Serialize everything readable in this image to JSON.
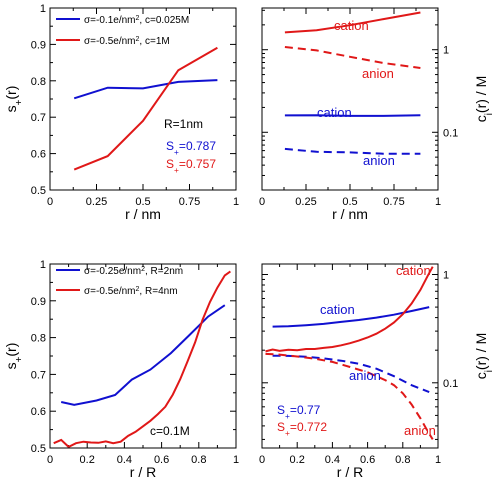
{
  "colors": {
    "blue": "#1010d0",
    "red": "#e01818",
    "axis": "#000000"
  },
  "chart_data": [
    {
      "id": "tl",
      "type": "line",
      "xlabel": "r / nm",
      "ylabel": "s+(r)",
      "xlim": [
        0,
        1
      ],
      "ylim": [
        0.5,
        1
      ],
      "xticks": [
        {
          "v": 0,
          "t": "0"
        },
        {
          "v": 0.25,
          "t": "0.25"
        },
        {
          "v": 0.5,
          "t": "0.5"
        },
        {
          "v": 0.75,
          "t": "0.75"
        },
        {
          "v": 1,
          "t": "1"
        }
      ],
      "yticks": [
        {
          "v": 0.5,
          "t": "0.5"
        },
        {
          "v": 0.6,
          "t": "0.6"
        },
        {
          "v": 0.7,
          "t": "0.7"
        },
        {
          "v": 0.8,
          "t": "0.8"
        },
        {
          "v": 0.9,
          "t": "0.9"
        },
        {
          "v": 1,
          "t": "1"
        }
      ],
      "series": [
        {
          "name": "σ=-0.1e/nm², c=0.025M",
          "color": "blue",
          "dash": false,
          "x": [
            0.13,
            0.31,
            0.5,
            0.69,
            0.9
          ],
          "y": [
            0.752,
            0.781,
            0.779,
            0.797,
            0.802
          ]
        },
        {
          "name": "σ=-0.5e/nm², c=1M",
          "color": "red",
          "dash": false,
          "x": [
            0.13,
            0.31,
            0.5,
            0.69,
            0.9
          ],
          "y": [
            0.556,
            0.593,
            0.69,
            0.829,
            0.891
          ]
        }
      ],
      "legend": "top-left",
      "annotations": [
        {
          "text": "R=1nm",
          "color": "axis"
        },
        {
          "text": "S+=0.787",
          "color": "blue"
        },
        {
          "text": "S+=0.757",
          "color": "red"
        }
      ]
    },
    {
      "id": "tr",
      "type": "line",
      "scale": "log",
      "xlabel": "r / nm",
      "ylabel": "ci(r) / M",
      "xlim": [
        0,
        1
      ],
      "ylim": [
        0.02,
        3.2
      ],
      "xticks": [
        {
          "v": 0,
          "t": "0"
        },
        {
          "v": 0.25,
          "t": "0.25"
        },
        {
          "v": 0.5,
          "t": "0.5"
        },
        {
          "v": 0.75,
          "t": "0.75"
        },
        {
          "v": 1,
          "t": "1"
        }
      ],
      "yticks": [
        {
          "v": 0.1,
          "t": "0.1"
        },
        {
          "v": 1,
          "t": "1"
        }
      ],
      "series": [
        {
          "name": "cation",
          "color": "red",
          "dash": false,
          "x": [
            0.13,
            0.31,
            0.5,
            0.69,
            0.9
          ],
          "y": [
            1.62,
            1.72,
            1.98,
            2.35,
            2.82
          ]
        },
        {
          "name": "anion",
          "color": "red",
          "dash": true,
          "x": [
            0.13,
            0.31,
            0.5,
            0.69,
            0.9
          ],
          "y": [
            1.08,
            0.98,
            0.82,
            0.69,
            0.6
          ]
        },
        {
          "name": "cation",
          "color": "blue",
          "dash": false,
          "x": [
            0.13,
            0.31,
            0.5,
            0.69,
            0.9
          ],
          "y": [
            0.16,
            0.161,
            0.158,
            0.158,
            0.161
          ]
        },
        {
          "name": "anion",
          "color": "blue",
          "dash": true,
          "x": [
            0.13,
            0.31,
            0.5,
            0.69,
            0.9
          ],
          "y": [
            0.063,
            0.058,
            0.057,
            0.055,
            0.055
          ]
        }
      ]
    },
    {
      "id": "bl",
      "type": "line",
      "xlabel": "r / R",
      "ylabel": "s+(r)",
      "xlim": [
        0,
        1
      ],
      "ylim": [
        0.5,
        1
      ],
      "xticks": [
        {
          "v": 0,
          "t": "0"
        },
        {
          "v": 0.2,
          "t": "0.2"
        },
        {
          "v": 0.4,
          "t": "0.4"
        },
        {
          "v": 0.6,
          "t": "0.6"
        },
        {
          "v": 0.8,
          "t": "0.8"
        },
        {
          "v": 1,
          "t": "1"
        }
      ],
      "yticks": [
        {
          "v": 0.5,
          "t": "0.5"
        },
        {
          "v": 0.6,
          "t": "0.6"
        },
        {
          "v": 0.7,
          "t": "0.7"
        },
        {
          "v": 0.8,
          "t": "0.8"
        },
        {
          "v": 0.9,
          "t": "0.9"
        },
        {
          "v": 1,
          "t": "1"
        }
      ],
      "series": [
        {
          "name": "σ=-0.25e/nm², R=2nm",
          "color": "blue",
          "dash": false,
          "x": [
            0.06,
            0.13,
            0.25,
            0.35,
            0.44,
            0.54,
            0.65,
            0.75,
            0.85,
            0.94
          ],
          "y": [
            0.625,
            0.617,
            0.629,
            0.644,
            0.686,
            0.713,
            0.758,
            0.807,
            0.857,
            0.888
          ]
        },
        {
          "name": "σ=-0.5e/nm², R=4nm",
          "color": "red",
          "dash": false,
          "x": [
            0.02,
            0.06,
            0.1,
            0.14,
            0.18,
            0.22,
            0.26,
            0.3,
            0.34,
            0.38,
            0.42,
            0.46,
            0.5,
            0.54,
            0.58,
            0.62,
            0.66,
            0.7,
            0.74,
            0.78,
            0.82,
            0.86,
            0.9,
            0.94,
            0.97
          ],
          "y": [
            0.513,
            0.522,
            0.503,
            0.513,
            0.517,
            0.515,
            0.514,
            0.518,
            0.513,
            0.517,
            0.533,
            0.544,
            0.559,
            0.574,
            0.592,
            0.612,
            0.645,
            0.687,
            0.736,
            0.787,
            0.848,
            0.897,
            0.936,
            0.969,
            0.98
          ]
        }
      ],
      "legend": "top-left",
      "annotations": [
        {
          "text": "c=0.1M",
          "color": "axis"
        }
      ]
    },
    {
      "id": "br",
      "type": "line",
      "scale": "log",
      "xlabel": "r / R",
      "ylabel": "ci(r) / M",
      "xlim": [
        0,
        1
      ],
      "ylim": [
        0.025,
        1.25
      ],
      "xticks": [
        {
          "v": 0,
          "t": "0"
        },
        {
          "v": 0.2,
          "t": "0.2"
        },
        {
          "v": 0.4,
          "t": "0.4"
        },
        {
          "v": 0.6,
          "t": "0.6"
        },
        {
          "v": 0.8,
          "t": "0.8"
        },
        {
          "v": 1,
          "t": "1"
        }
      ],
      "yticks": [
        {
          "v": 0.1,
          "t": "0.1"
        },
        {
          "v": 1,
          "t": "1"
        }
      ],
      "series": [
        {
          "name": "cation",
          "color": "blue",
          "dash": false,
          "x": [
            0.06,
            0.15,
            0.25,
            0.35,
            0.45,
            0.55,
            0.65,
            0.75,
            0.85,
            0.95
          ],
          "y": [
            0.33,
            0.333,
            0.34,
            0.35,
            0.365,
            0.38,
            0.4,
            0.425,
            0.46,
            0.5
          ]
        },
        {
          "name": "cation",
          "color": "red",
          "dash": false,
          "x": [
            0.02,
            0.06,
            0.1,
            0.15,
            0.2,
            0.25,
            0.3,
            0.35,
            0.4,
            0.45,
            0.5,
            0.55,
            0.6,
            0.65,
            0.7,
            0.75,
            0.8,
            0.85,
            0.9,
            0.94,
            0.97
          ],
          "y": [
            0.195,
            0.203,
            0.197,
            0.202,
            0.2,
            0.205,
            0.205,
            0.21,
            0.214,
            0.222,
            0.232,
            0.245,
            0.262,
            0.284,
            0.316,
            0.36,
            0.43,
            0.54,
            0.72,
            0.96,
            1.18
          ]
        },
        {
          "name": "anion",
          "color": "blue",
          "dash": true,
          "x": [
            0.06,
            0.15,
            0.25,
            0.35,
            0.45,
            0.55,
            0.65,
            0.75,
            0.85,
            0.95
          ],
          "y": [
            0.178,
            0.177,
            0.174,
            0.168,
            0.16,
            0.15,
            0.135,
            0.115,
            0.095,
            0.082
          ]
        },
        {
          "name": "anion",
          "color": "red",
          "dash": true,
          "x": [
            0.02,
            0.1,
            0.2,
            0.3,
            0.4,
            0.5,
            0.6,
            0.7,
            0.75,
            0.8,
            0.85,
            0.9,
            0.94,
            0.97
          ],
          "y": [
            0.185,
            0.182,
            0.175,
            0.167,
            0.156,
            0.14,
            0.125,
            0.106,
            0.095,
            0.08,
            0.063,
            0.047,
            0.036,
            0.03
          ]
        }
      ],
      "annotations": [
        {
          "text": "S+=0.77",
          "color": "blue"
        },
        {
          "text": "S+=0.772",
          "color": "red"
        }
      ]
    }
  ]
}
